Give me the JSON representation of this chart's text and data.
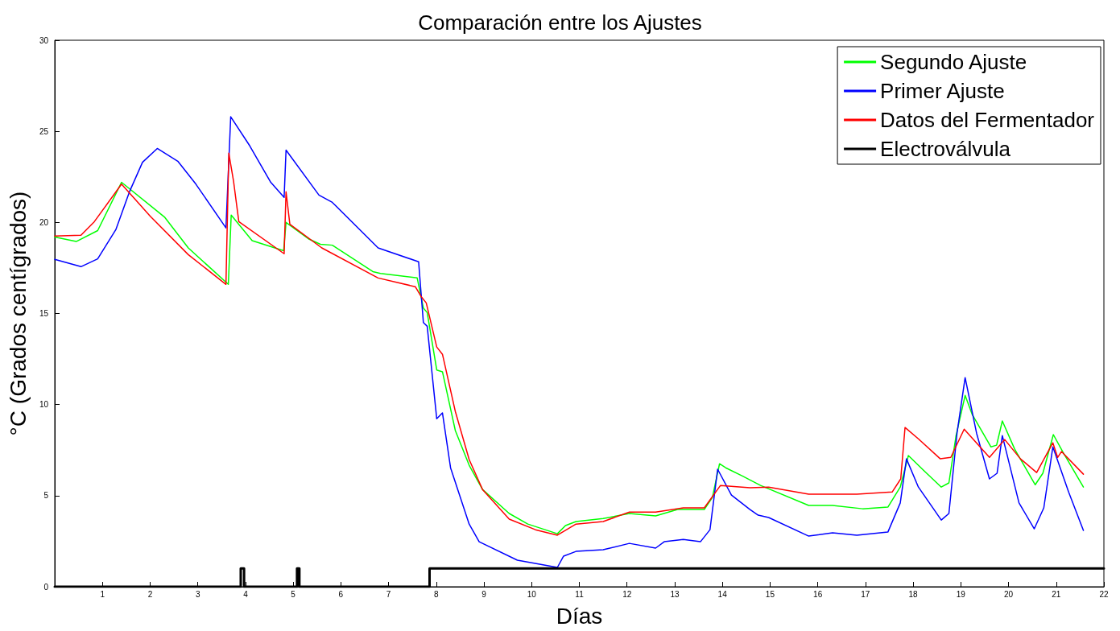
{
  "chart_data": {
    "type": "line",
    "title": "Comparación entre los Ajustes",
    "xlabel": "Días",
    "ylabel": "°C (Grados centígrados)",
    "xlim": [
      0,
      22
    ],
    "xticks": [
      {
        "value": 0,
        "label": null
      },
      1,
      2,
      3,
      4,
      5,
      6,
      7,
      8,
      9,
      10,
      11,
      12,
      13,
      14,
      15,
      16,
      17,
      18,
      19,
      20,
      21,
      22
    ],
    "ylim": [
      0,
      30
    ],
    "yticks": [
      0,
      5,
      10,
      15,
      20,
      25,
      30
    ],
    "grid": false,
    "legend": "top right",
    "marker": "none",
    "line_style": "solid",
    "series": [
      {
        "name": "Segundo Ajuste",
        "color": "#00ff00",
        "x": [
          0,
          0.45,
          0.9,
          1.4,
          2.3,
          2.8,
          3.64,
          3.7,
          4.14,
          4.8,
          4.85,
          5.32,
          5.57,
          5.82,
          6.67,
          6.83,
          7.6,
          7.73,
          7.81,
          8.01,
          8.13,
          8.4,
          8.69,
          8.97,
          9.53,
          9.92,
          10.54,
          10.71,
          10.93,
          11.5,
          12.05,
          12.6,
          13.06,
          13.62,
          13.79,
          13.94,
          14.07,
          14.41,
          14.8,
          15.81,
          16.31,
          16.94,
          17.47,
          17.73,
          17.9,
          18.23,
          18.59,
          18.75,
          18.9,
          19.09,
          19.24,
          19.63,
          19.75,
          19.87,
          20.13,
          20.56,
          20.72,
          20.94,
          21.14,
          21.57
        ],
        "values": [
          19.2,
          18.95,
          19.55,
          22.2,
          20.3,
          18.6,
          16.6,
          20.4,
          19.0,
          18.45,
          20.0,
          19.1,
          18.8,
          18.75,
          17.3,
          17.2,
          16.95,
          15.3,
          15.05,
          11.9,
          11.8,
          8.57,
          6.67,
          5.34,
          4.02,
          3.44,
          2.91,
          3.36,
          3.58,
          3.74,
          4.02,
          3.89,
          4.24,
          4.24,
          4.9,
          6.75,
          6.53,
          6.09,
          5.56,
          4.46,
          4.46,
          4.28,
          4.37,
          5.47,
          7.2,
          6.36,
          5.47,
          5.7,
          8.3,
          10.5,
          9.45,
          7.68,
          7.77,
          9.1,
          7.55,
          5.6,
          6.23,
          8.35,
          7.4,
          5.47
        ]
      },
      {
        "name": "Primer Ajuste",
        "color": "#0000ff",
        "x": [
          0,
          0.55,
          0.9,
          1.28,
          1.57,
          1.84,
          2.15,
          2.58,
          2.96,
          3.59,
          3.69,
          4.09,
          4.53,
          4.81,
          4.85,
          5.54,
          5.82,
          6.78,
          6.89,
          7.63,
          7.73,
          7.81,
          8.01,
          8.13,
          8.3,
          8.69,
          8.9,
          9.7,
          10.54,
          10.67,
          10.93,
          11.5,
          12.05,
          12.6,
          12.78,
          13.18,
          13.54,
          13.74,
          13.9,
          14.19,
          14.58,
          14.75,
          14.97,
          15.81,
          16.31,
          16.82,
          17.47,
          17.73,
          17.86,
          18.11,
          18.59,
          18.75,
          18.92,
          19.09,
          19.33,
          19.6,
          19.76,
          19.87,
          20.22,
          20.54,
          20.74,
          20.93,
          21.26,
          21.57
        ],
        "values": [
          17.97,
          17.57,
          18.0,
          19.6,
          21.7,
          23.3,
          24.06,
          23.36,
          22.1,
          19.7,
          25.8,
          24.2,
          22.2,
          21.37,
          23.97,
          21.5,
          21.1,
          18.6,
          18.5,
          17.84,
          14.5,
          14.3,
          9.22,
          9.54,
          6.53,
          3.44,
          2.47,
          1.46,
          1.06,
          1.68,
          1.94,
          2.03,
          2.38,
          2.12,
          2.47,
          2.6,
          2.47,
          3.13,
          6.45,
          5.03,
          4.24,
          3.93,
          3.8,
          2.78,
          2.96,
          2.83,
          3.0,
          4.6,
          7.02,
          5.47,
          3.66,
          4.02,
          8.43,
          11.48,
          8.43,
          5.92,
          6.23,
          8.3,
          4.6,
          3.18,
          4.33,
          7.68,
          5.2,
          3.09
        ]
      },
      {
        "name": "Datos del Fermentador",
        "color": "#ff0000",
        "x": [
          0,
          0.55,
          0.83,
          1.4,
          2.0,
          2.8,
          3.59,
          3.65,
          3.75,
          3.86,
          4.81,
          4.85,
          4.93,
          5.6,
          6.78,
          7.56,
          7.68,
          7.79,
          8.01,
          8.13,
          8.4,
          8.69,
          8.97,
          9.53,
          10.08,
          10.54,
          10.93,
          11.5,
          12.05,
          12.6,
          13.18,
          13.62,
          13.96,
          14.58,
          14.97,
          15.81,
          16.82,
          17.56,
          17.74,
          17.83,
          18.11,
          18.57,
          18.79,
          19.07,
          19.6,
          19.92,
          20.25,
          20.59,
          20.93,
          21.03,
          21.11,
          21.57
        ],
        "values": [
          19.25,
          19.3,
          20.04,
          22.1,
          20.35,
          18.23,
          16.6,
          23.8,
          22.25,
          20.04,
          18.28,
          21.68,
          19.9,
          18.6,
          16.95,
          16.47,
          15.94,
          15.58,
          13.16,
          12.76,
          9.62,
          6.98,
          5.34,
          3.71,
          3.13,
          2.83,
          3.44,
          3.58,
          4.1,
          4.1,
          4.33,
          4.33,
          5.56,
          5.43,
          5.47,
          5.08,
          5.08,
          5.2,
          5.92,
          8.74,
          8.12,
          7.02,
          7.1,
          8.65,
          7.1,
          8.08,
          7.02,
          6.27,
          7.9,
          7.1,
          7.42,
          6.18
        ]
      },
      {
        "name": "Electroválvula",
        "type": "step",
        "color": "#000000",
        "x": [
          0,
          3.9,
          3.97,
          5.08,
          5.13,
          7.86,
          22
        ],
        "values": [
          0,
          1,
          0,
          1,
          0,
          1,
          1
        ]
      }
    ]
  }
}
